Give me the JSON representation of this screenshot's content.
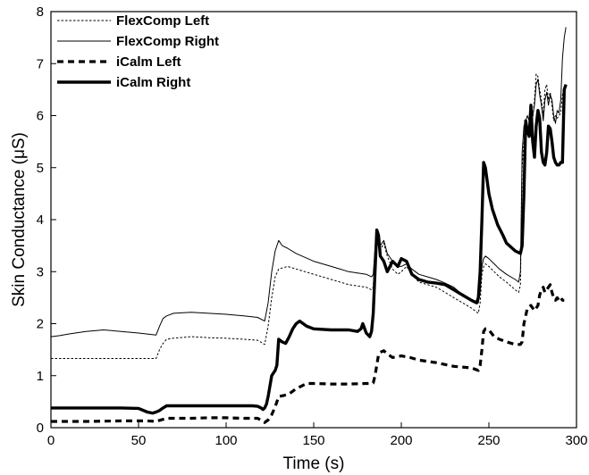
{
  "chart_data": {
    "type": "line",
    "title": "",
    "xlabel": "Time (s)",
    "ylabel": "Skin Conductance (μS)",
    "xlim": [
      0,
      300
    ],
    "ylim": [
      0,
      8
    ],
    "xticks": [
      0,
      50,
      100,
      150,
      200,
      250,
      300
    ],
    "yticks": [
      0,
      1,
      2,
      3,
      4,
      5,
      6,
      7,
      8
    ],
    "grid": false,
    "legend_position": "top-left",
    "series": [
      {
        "name": "FlexComp Left",
        "style": "thin-dotted",
        "x": [
          0,
          10,
          20,
          40,
          55,
          60,
          62,
          64,
          66,
          70,
          80,
          90,
          100,
          110,
          118,
          122,
          124,
          126,
          128,
          130,
          135,
          140,
          150,
          160,
          170,
          180,
          183,
          184,
          185,
          186,
          187,
          188,
          190,
          192,
          195,
          198,
          200,
          203,
          206,
          210,
          215,
          220,
          225,
          230,
          235,
          240,
          242,
          244,
          245,
          246,
          247,
          248,
          250,
          253,
          256,
          260,
          265,
          267,
          268,
          269,
          270,
          272,
          274,
          276,
          277,
          278,
          279,
          280,
          281,
          282,
          283,
          284,
          285,
          286,
          287,
          288,
          289,
          290,
          291,
          292,
          293
        ],
        "values": [
          1.33,
          1.33,
          1.33,
          1.33,
          1.33,
          1.33,
          1.5,
          1.62,
          1.7,
          1.72,
          1.75,
          1.73,
          1.72,
          1.7,
          1.68,
          1.6,
          1.95,
          2.5,
          2.9,
          3.05,
          3.1,
          3.05,
          2.95,
          2.85,
          2.75,
          2.7,
          2.65,
          2.7,
          3.3,
          3.65,
          3.5,
          3.4,
          3.55,
          3.3,
          3.05,
          2.95,
          3.0,
          3.1,
          2.95,
          2.8,
          2.75,
          2.7,
          2.6,
          2.5,
          2.4,
          2.3,
          2.25,
          2.2,
          2.4,
          2.95,
          3.1,
          3.15,
          3.1,
          3.0,
          2.9,
          2.8,
          2.65,
          2.6,
          2.75,
          5.0,
          5.5,
          5.7,
          5.6,
          6.3,
          6.8,
          6.75,
          6.5,
          6.3,
          6.0,
          6.5,
          6.6,
          6.3,
          6.45,
          6.2,
          5.9,
          6.0,
          5.95,
          6.0,
          6.05,
          6.4,
          6.5
        ]
      },
      {
        "name": "FlexComp Right",
        "style": "thin-solid",
        "x": [
          0,
          5,
          10,
          20,
          30,
          40,
          50,
          55,
          60,
          62,
          64,
          66,
          70,
          80,
          90,
          100,
          110,
          118,
          122,
          124,
          126,
          128,
          130,
          132,
          135,
          140,
          150,
          160,
          170,
          180,
          183,
          184,
          185,
          186,
          187,
          188,
          190,
          192,
          195,
          198,
          200,
          203,
          206,
          210,
          215,
          220,
          225,
          230,
          235,
          240,
          242,
          244,
          245,
          246,
          247,
          248,
          250,
          253,
          256,
          260,
          265,
          267,
          268,
          269,
          270,
          272,
          274,
          276,
          277,
          278,
          279,
          280,
          281,
          282,
          283,
          284,
          285,
          286,
          287,
          288,
          289,
          290,
          291,
          292,
          293,
          294
        ],
        "values": [
          1.75,
          1.77,
          1.8,
          1.85,
          1.88,
          1.85,
          1.82,
          1.8,
          1.78,
          1.95,
          2.1,
          2.15,
          2.2,
          2.22,
          2.2,
          2.18,
          2.15,
          2.12,
          2.05,
          2.4,
          3.0,
          3.4,
          3.6,
          3.5,
          3.45,
          3.35,
          3.2,
          3.1,
          3.0,
          2.95,
          2.9,
          2.95,
          3.45,
          3.8,
          3.65,
          3.5,
          3.6,
          3.35,
          3.2,
          3.1,
          3.1,
          3.15,
          3.05,
          2.95,
          2.9,
          2.85,
          2.78,
          2.7,
          2.55,
          2.45,
          2.4,
          2.4,
          2.6,
          3.1,
          3.25,
          3.3,
          3.25,
          3.15,
          3.05,
          2.95,
          2.85,
          2.8,
          3.0,
          5.3,
          5.8,
          6.0,
          5.8,
          6.2,
          6.6,
          6.7,
          6.4,
          6.2,
          5.9,
          6.3,
          6.45,
          6.2,
          6.4,
          6.3,
          6.0,
          5.85,
          6.1,
          6.05,
          6.3,
          7.1,
          7.5,
          7.7
        ]
      },
      {
        "name": "iCalm Left",
        "style": "thick-dashed",
        "x": [
          0,
          10,
          20,
          40,
          55,
          60,
          62,
          64,
          66,
          70,
          80,
          90,
          100,
          110,
          118,
          122,
          124,
          126,
          128,
          130,
          133,
          136,
          140,
          143,
          146,
          150,
          160,
          170,
          180,
          183,
          184,
          185,
          187,
          188,
          190,
          192,
          195,
          200,
          205,
          210,
          220,
          230,
          240,
          244,
          245,
          246,
          247,
          248,
          250,
          253,
          256,
          260,
          265,
          268,
          269,
          270,
          272,
          274,
          276,
          278,
          279,
          280,
          281,
          282,
          283,
          284,
          285,
          286,
          287,
          288,
          289,
          290,
          291,
          292,
          293
        ],
        "values": [
          0.12,
          0.12,
          0.12,
          0.13,
          0.13,
          0.12,
          0.14,
          0.16,
          0.18,
          0.18,
          0.18,
          0.19,
          0.19,
          0.18,
          0.18,
          0.1,
          0.15,
          0.25,
          0.4,
          0.6,
          0.62,
          0.65,
          0.75,
          0.8,
          0.85,
          0.85,
          0.84,
          0.84,
          0.85,
          0.85,
          0.86,
          1.0,
          1.4,
          1.45,
          1.48,
          1.42,
          1.35,
          1.38,
          1.35,
          1.3,
          1.25,
          1.18,
          1.15,
          1.1,
          1.2,
          1.5,
          1.85,
          1.9,
          1.88,
          1.75,
          1.7,
          1.65,
          1.6,
          1.6,
          1.65,
          2.0,
          2.3,
          2.35,
          2.25,
          2.35,
          2.55,
          2.65,
          2.7,
          2.6,
          2.65,
          2.7,
          2.75,
          2.6,
          2.5,
          2.45,
          2.5,
          2.45,
          2.5,
          2.45,
          2.45
        ]
      },
      {
        "name": "iCalm Right",
        "style": "thick-solid",
        "x": [
          0,
          10,
          20,
          40,
          50,
          55,
          58,
          60,
          62,
          64,
          66,
          70,
          80,
          90,
          100,
          110,
          115,
          118,
          120,
          121,
          122,
          123,
          124,
          125,
          126,
          127,
          128,
          129,
          130,
          132,
          134,
          136,
          138,
          140,
          142,
          144,
          146,
          150,
          160,
          170,
          175,
          177,
          178,
          180,
          182,
          183,
          184,
          185,
          186,
          187,
          188,
          190,
          192,
          195,
          198,
          200,
          203,
          206,
          210,
          215,
          220,
          225,
          230,
          235,
          240,
          243,
          244,
          245,
          246,
          247,
          248,
          250,
          252,
          255,
          258,
          260,
          265,
          268,
          269,
          270,
          271,
          272,
          273,
          274,
          275,
          276,
          277,
          278,
          279,
          280,
          281,
          282,
          283,
          284,
          285,
          286,
          287,
          288,
          289,
          290,
          291,
          292,
          293,
          294
        ],
        "values": [
          0.38,
          0.38,
          0.38,
          0.38,
          0.37,
          0.3,
          0.28,
          0.3,
          0.33,
          0.38,
          0.42,
          0.42,
          0.42,
          0.42,
          0.42,
          0.42,
          0.42,
          0.41,
          0.38,
          0.35,
          0.38,
          0.45,
          0.6,
          0.8,
          1.0,
          1.05,
          1.1,
          1.2,
          1.7,
          1.65,
          1.62,
          1.75,
          1.9,
          2.0,
          2.05,
          2.0,
          1.95,
          1.9,
          1.88,
          1.88,
          1.85,
          1.9,
          2.0,
          1.82,
          1.75,
          1.85,
          2.2,
          3.0,
          3.8,
          3.7,
          3.3,
          3.2,
          3.0,
          3.2,
          3.1,
          3.25,
          3.2,
          2.95,
          2.85,
          2.8,
          2.78,
          2.75,
          2.65,
          2.55,
          2.45,
          2.4,
          2.5,
          3.0,
          4.0,
          5.1,
          5.0,
          4.5,
          4.2,
          3.9,
          3.7,
          3.55,
          3.4,
          3.35,
          3.5,
          4.5,
          5.9,
          5.7,
          5.6,
          6.2,
          5.5,
          5.2,
          5.8,
          6.1,
          5.95,
          5.3,
          5.1,
          5.05,
          5.3,
          5.8,
          5.75,
          5.5,
          5.2,
          5.1,
          5.05,
          5.05,
          5.1,
          5.1,
          6.5,
          6.6
        ]
      }
    ]
  }
}
